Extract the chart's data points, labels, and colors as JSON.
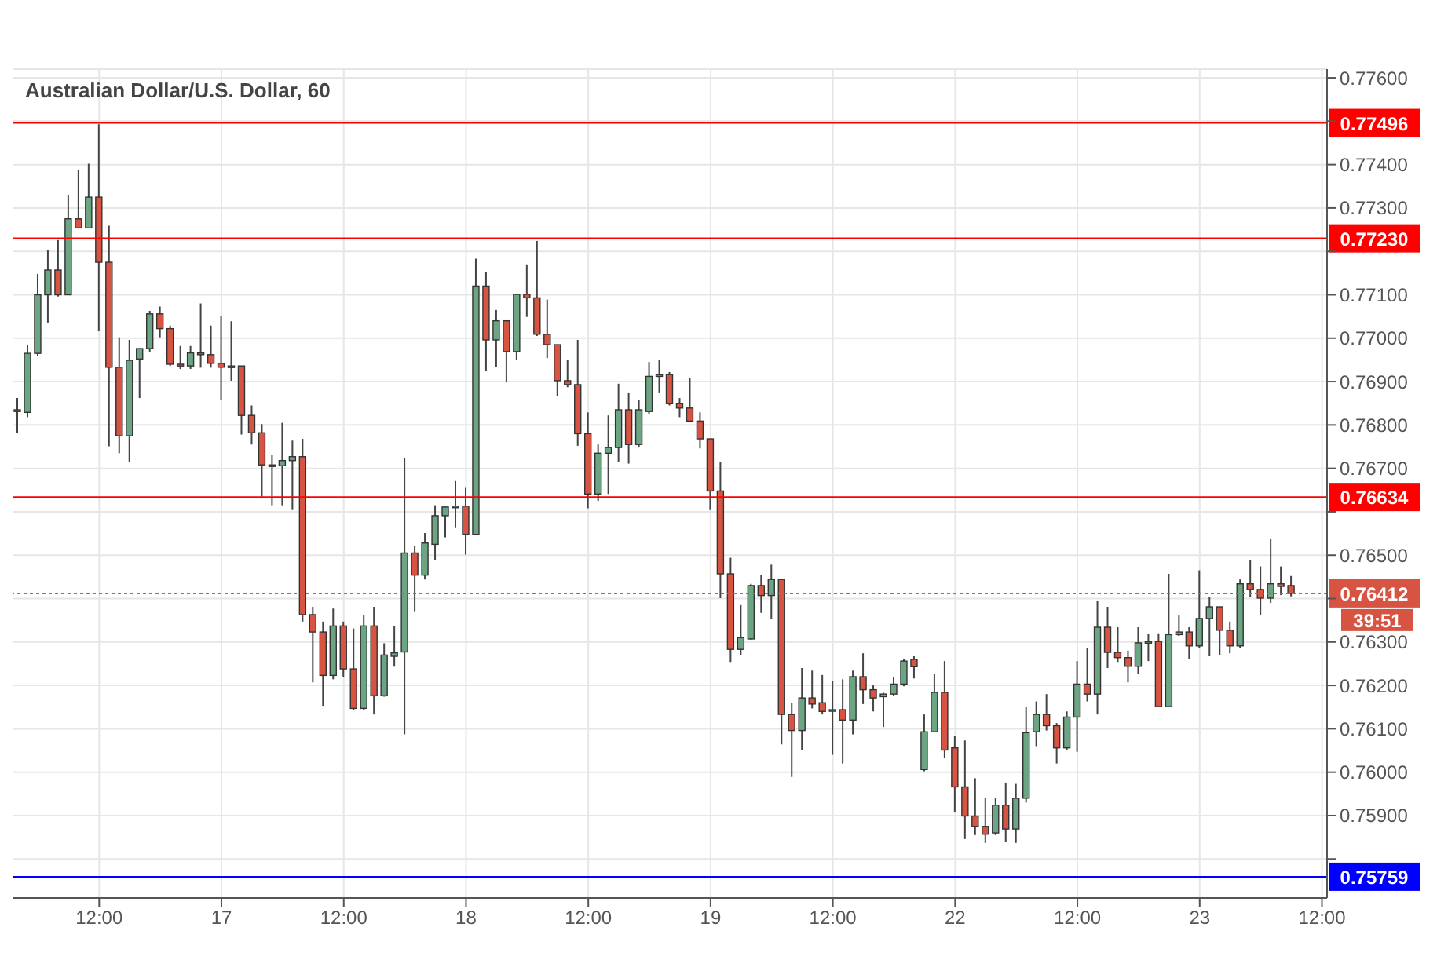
{
  "chart_data": {
    "type": "candlestick",
    "title": "Australian Dollar/U.S. Dollar, 60",
    "categories": [
      null,
      null,
      null,
      null,
      null,
      null,
      null,
      null,
      "12:00",
      null,
      null,
      null,
      null,
      null,
      null,
      null,
      null,
      null,
      null,
      null,
      "17",
      null,
      null,
      null,
      null,
      null,
      null,
      null,
      null,
      null,
      null,
      null,
      "12:00",
      null,
      null,
      null,
      null,
      null,
      null,
      null,
      null,
      null,
      null,
      null,
      "18",
      null,
      null,
      null,
      null,
      null,
      null,
      null,
      null,
      null,
      null,
      null,
      "12:00",
      null,
      null,
      null,
      null,
      null,
      null,
      null,
      null,
      null,
      null,
      null,
      "19",
      null,
      null,
      null,
      null,
      null,
      null,
      null,
      null,
      null,
      null,
      null,
      "12:00",
      null,
      null,
      null,
      null,
      null,
      null,
      null,
      null,
      null,
      null,
      null,
      "22",
      null,
      null,
      null,
      null,
      null,
      null,
      null,
      null,
      null,
      null,
      null,
      "12:00",
      null,
      null,
      null,
      null,
      null,
      null,
      null,
      null,
      null,
      null,
      null,
      "23",
      null,
      null,
      null,
      null,
      null,
      null,
      null,
      null,
      null,
      null,
      null,
      "12:00"
    ],
    "ohlc": [
      [
        0.76835,
        0.76862,
        0.76782,
        0.76831
      ],
      [
        0.76829,
        0.76985,
        0.76818,
        0.76965
      ],
      [
        0.76965,
        0.77148,
        0.76958,
        0.771
      ],
      [
        0.771,
        0.77203,
        0.77036,
        0.77157
      ],
      [
        0.77157,
        0.77226,
        0.77096,
        0.771
      ],
      [
        0.771,
        0.7733,
        0.771,
        0.77275
      ],
      [
        0.77275,
        0.77387,
        0.77254,
        0.77254
      ],
      [
        0.77254,
        0.77402,
        0.77254,
        0.77325
      ],
      [
        0.77325,
        0.77493,
        0.77016,
        0.77175
      ],
      [
        0.77175,
        0.77259,
        0.76751,
        0.76933
      ],
      [
        0.76933,
        0.77002,
        0.76735,
        0.76775
      ],
      [
        0.76775,
        0.76996,
        0.76715,
        0.76949
      ],
      [
        0.76952,
        0.76976,
        0.76862,
        0.76976
      ],
      [
        0.76976,
        0.77063,
        0.76969,
        0.77056
      ],
      [
        0.77056,
        0.77073,
        0.77002,
        0.77022
      ],
      [
        0.77022,
        0.77029,
        0.76936,
        0.7694
      ],
      [
        0.7694,
        0.76982,
        0.76929,
        0.76936
      ],
      [
        0.76936,
        0.76982,
        0.76929,
        0.76966
      ],
      [
        0.76966,
        0.7708,
        0.76932,
        0.76962
      ],
      [
        0.76962,
        0.77029,
        0.76932,
        0.76942
      ],
      [
        0.76942,
        0.77052,
        0.76858,
        0.76933
      ],
      [
        0.76933,
        0.77039,
        0.76902,
        0.76936
      ],
      [
        0.76936,
        0.76936,
        0.76778,
        0.76822
      ],
      [
        0.76822,
        0.76845,
        0.76755,
        0.76782
      ],
      [
        0.76782,
        0.76802,
        0.76635,
        0.76708
      ],
      [
        0.76708,
        0.76732,
        0.76615,
        0.76705
      ],
      [
        0.76706,
        0.76805,
        0.76615,
        0.76718
      ],
      [
        0.76718,
        0.76764,
        0.76604,
        0.76727
      ],
      [
        0.76727,
        0.76768,
        0.76347,
        0.76363
      ],
      [
        0.76363,
        0.76381,
        0.76207,
        0.76323
      ],
      [
        0.76323,
        0.76347,
        0.76153,
        0.76223
      ],
      [
        0.76223,
        0.76377,
        0.76214,
        0.76337
      ],
      [
        0.76337,
        0.76347,
        0.7622,
        0.76238
      ],
      [
        0.76238,
        0.76331,
        0.76144,
        0.76147
      ],
      [
        0.76147,
        0.76361,
        0.76144,
        0.76337
      ],
      [
        0.76337,
        0.76381,
        0.76133,
        0.76176
      ],
      [
        0.76176,
        0.76297,
        0.76174,
        0.7627
      ],
      [
        0.76267,
        0.76337,
        0.76243,
        0.76275
      ],
      [
        0.76277,
        0.76724,
        0.76087,
        0.76505
      ],
      [
        0.76505,
        0.76521,
        0.76371,
        0.76454
      ],
      [
        0.76454,
        0.76551,
        0.76444,
        0.76528
      ],
      [
        0.76525,
        0.76615,
        0.76488,
        0.76591
      ],
      [
        0.76591,
        0.76611,
        0.76541,
        0.76611
      ],
      [
        0.76611,
        0.76671,
        0.76564,
        0.76613
      ],
      [
        0.76613,
        0.76655,
        0.76501,
        0.76548
      ],
      [
        0.76548,
        0.77183,
        0.76548,
        0.7712
      ],
      [
        0.7712,
        0.77152,
        0.76925,
        0.76996
      ],
      [
        0.76996,
        0.77065,
        0.76933,
        0.7704
      ],
      [
        0.7704,
        0.7704,
        0.76898,
        0.76969
      ],
      [
        0.76969,
        0.77101,
        0.76949,
        0.77101
      ],
      [
        0.77101,
        0.7717,
        0.77049,
        0.77093
      ],
      [
        0.77093,
        0.77224,
        0.77005,
        0.77009
      ],
      [
        0.77009,
        0.77089,
        0.76954,
        0.76985
      ],
      [
        0.76985,
        0.76985,
        0.76866,
        0.76902
      ],
      [
        0.76902,
        0.76949,
        0.76887,
        0.76893
      ],
      [
        0.76893,
        0.76996,
        0.76752,
        0.7678
      ],
      [
        0.7678,
        0.76829,
        0.76608,
        0.76641
      ],
      [
        0.76641,
        0.76755,
        0.76625,
        0.76735
      ],
      [
        0.76735,
        0.76822,
        0.76641,
        0.76748
      ],
      [
        0.76748,
        0.76895,
        0.76715,
        0.76835
      ],
      [
        0.76835,
        0.76875,
        0.76711,
        0.76755
      ],
      [
        0.76755,
        0.76858,
        0.76748,
        0.76835
      ],
      [
        0.76831,
        0.76945,
        0.76826,
        0.76912
      ],
      [
        0.76912,
        0.76949,
        0.76875,
        0.76916
      ],
      [
        0.76916,
        0.76922,
        0.76845,
        0.76849
      ],
      [
        0.76849,
        0.76862,
        0.76818,
        0.76839
      ],
      [
        0.76839,
        0.76909,
        0.76806,
        0.76809
      ],
      [
        0.76809,
        0.76829,
        0.76746,
        0.76768
      ],
      [
        0.76768,
        0.76768,
        0.76604,
        0.76648
      ],
      [
        0.76648,
        0.76715,
        0.76401,
        0.76457
      ],
      [
        0.76457,
        0.76494,
        0.76254,
        0.76283
      ],
      [
        0.76283,
        0.76385,
        0.7627,
        0.7631
      ],
      [
        0.76307,
        0.76434,
        0.76305,
        0.7643
      ],
      [
        0.7643,
        0.76454,
        0.76367,
        0.76407
      ],
      [
        0.76407,
        0.76478,
        0.76353,
        0.76444
      ],
      [
        0.76444,
        0.76444,
        0.76064,
        0.76133
      ],
      [
        0.76133,
        0.7616,
        0.75989,
        0.76096
      ],
      [
        0.76096,
        0.7624,
        0.76051,
        0.76171
      ],
      [
        0.76171,
        0.76234,
        0.76147,
        0.76157
      ],
      [
        0.7616,
        0.76224,
        0.76133,
        0.7614
      ],
      [
        0.76141,
        0.76211,
        0.7604,
        0.76144
      ],
      [
        0.76144,
        0.76214,
        0.7602,
        0.7612
      ],
      [
        0.7612,
        0.76234,
        0.76087,
        0.7622
      ],
      [
        0.7622,
        0.76274,
        0.76157,
        0.7619
      ],
      [
        0.7619,
        0.762,
        0.7614,
        0.76171
      ],
      [
        0.76174,
        0.76183,
        0.76104,
        0.7618
      ],
      [
        0.7618,
        0.7622,
        0.76176,
        0.76203
      ],
      [
        0.76203,
        0.7626,
        0.76198,
        0.76256
      ],
      [
        0.7626,
        0.76267,
        0.76216,
        0.76243
      ],
      [
        0.76006,
        0.76133,
        0.76002,
        0.76093
      ],
      [
        0.76093,
        0.76227,
        0.76093,
        0.76184
      ],
      [
        0.76184,
        0.76256,
        0.76033,
        0.76051
      ],
      [
        0.76056,
        0.76083,
        0.75909,
        0.75966
      ],
      [
        0.75966,
        0.76073,
        0.75846,
        0.75899
      ],
      [
        0.75899,
        0.75986,
        0.75855,
        0.75875
      ],
      [
        0.75875,
        0.7594,
        0.75837,
        0.75857
      ],
      [
        0.7586,
        0.7594,
        0.75855,
        0.75924
      ],
      [
        0.75924,
        0.75976,
        0.75839,
        0.75869
      ],
      [
        0.75869,
        0.75973,
        0.75837,
        0.7594
      ],
      [
        0.7594,
        0.7615,
        0.7593,
        0.76091
      ],
      [
        0.76093,
        0.76163,
        0.7606,
        0.76133
      ],
      [
        0.76133,
        0.7618,
        0.76096,
        0.76107
      ],
      [
        0.76107,
        0.76113,
        0.7602,
        0.76056
      ],
      [
        0.76056,
        0.7614,
        0.76051,
        0.76127
      ],
      [
        0.76127,
        0.76256,
        0.76047,
        0.76203
      ],
      [
        0.76203,
        0.76287,
        0.76163,
        0.7618
      ],
      [
        0.7618,
        0.76394,
        0.76133,
        0.76334
      ],
      [
        0.76334,
        0.76381,
        0.7624,
        0.76276
      ],
      [
        0.76276,
        0.76334,
        0.76254,
        0.76264
      ],
      [
        0.76264,
        0.7628,
        0.76207,
        0.76244
      ],
      [
        0.76244,
        0.76334,
        0.76227,
        0.76298
      ],
      [
        0.76298,
        0.76318,
        0.76256,
        0.76301
      ],
      [
        0.76301,
        0.7632,
        0.76151,
        0.76151
      ],
      [
        0.76151,
        0.76457,
        0.76151,
        0.76317
      ],
      [
        0.76317,
        0.76361,
        0.76314,
        0.76323
      ],
      [
        0.76323,
        0.76334,
        0.7626,
        0.76291
      ],
      [
        0.76291,
        0.76465,
        0.76287,
        0.76354
      ],
      [
        0.76354,
        0.76404,
        0.76267,
        0.76381
      ],
      [
        0.76381,
        0.76381,
        0.7627,
        0.76327
      ],
      [
        0.76327,
        0.76347,
        0.76274,
        0.76291
      ],
      [
        0.76291,
        0.76444,
        0.76287,
        0.76434
      ],
      [
        0.76434,
        0.76488,
        0.76404,
        0.76421
      ],
      [
        0.76421,
        0.76474,
        0.76363,
        0.76401
      ],
      [
        0.76401,
        0.76537,
        0.7639,
        0.76434
      ],
      [
        0.76434,
        0.76474,
        0.76408,
        0.76428
      ],
      [
        0.7643,
        0.76452,
        0.76405,
        0.76412
      ],
      null,
      null,
      null
    ],
    "colors": [
      "#d75442",
      "#6ba583",
      "#6ba583",
      "#6ba583",
      "#d75442",
      "#6ba583",
      "#d75442",
      "#6ba583",
      "#d75442",
      "#d75442",
      "#d75442",
      "#6ba583",
      "#6ba583",
      "#6ba583",
      "#d75442",
      "#d75442",
      "#d75442",
      "#6ba583",
      "#d75442",
      "#d75442",
      "#d75442",
      "#6ba583",
      "#d75442",
      "#d75442",
      "#d75442",
      "#d75442",
      "#6ba583",
      "#6ba583",
      "#d75442",
      "#d75442",
      "#d75442",
      "#6ba583",
      "#d75442",
      "#d75442",
      "#6ba583",
      "#d75442",
      "#6ba583",
      "#6ba583",
      "#6ba583",
      "#d75442",
      "#6ba583",
      "#6ba583",
      "#6ba583",
      "#6ba583",
      "#d75442",
      "#6ba583",
      "#d75442",
      "#6ba583",
      "#d75442",
      "#6ba583",
      "#d75442",
      "#d75442",
      "#d75442",
      "#d75442",
      "#d75442",
      "#d75442",
      "#d75442",
      "#6ba583",
      "#6ba583",
      "#6ba583",
      "#d75442",
      "#6ba583",
      "#6ba583",
      "#6ba583",
      "#d75442",
      "#d75442",
      "#d75442",
      "#d75442",
      "#d75442",
      "#d75442",
      "#d75442",
      "#6ba583",
      "#6ba583",
      "#d75442",
      "#6ba583",
      "#d75442",
      "#d75442",
      "#6ba583",
      "#d75442",
      "#d75442",
      "#6ba583",
      "#d75442",
      "#6ba583",
      "#d75442",
      "#d75442",
      "#6ba583",
      "#6ba583",
      "#6ba583",
      "#d75442",
      "#6ba583",
      "#6ba583",
      "#d75442",
      "#d75442",
      "#d75442",
      "#d75442",
      "#d75442",
      "#6ba583",
      "#d75442",
      "#6ba583",
      "#6ba583",
      "#6ba583",
      "#d75442",
      "#d75442",
      "#6ba583",
      "#6ba583",
      "#d75442",
      "#6ba583",
      "#d75442",
      "#d75442",
      "#d75442",
      "#6ba583",
      "#6ba583",
      "#d75442",
      "#6ba583",
      "#6ba583",
      "#d75442",
      "#6ba583",
      "#6ba583",
      "#d75442",
      "#d75442",
      "#6ba583",
      "#d75442",
      "#d75442",
      "#6ba583",
      "#d75442",
      "#d75442",
      null,
      null,
      null
    ],
    "ylim": [
      0.7571,
      0.7762
    ],
    "yticks": [
      {
        "value": 0.758,
        "label": null
      },
      {
        "value": 0.759,
        "label": "0.75900"
      },
      {
        "value": 0.76,
        "label": "0.76000"
      },
      {
        "value": 0.761,
        "label": "0.76100"
      },
      {
        "value": 0.762,
        "label": "0.76200"
      },
      {
        "value": 0.763,
        "label": "0.76300"
      },
      {
        "value": 0.764,
        "label": null
      },
      {
        "value": 0.765,
        "label": "0.76500"
      },
      {
        "value": 0.766,
        "label": null
      },
      {
        "value": 0.767,
        "label": "0.76700"
      },
      {
        "value": 0.768,
        "label": "0.76800"
      },
      {
        "value": 0.769,
        "label": "0.76900"
      },
      {
        "value": 0.77,
        "label": "0.77000"
      },
      {
        "value": 0.771,
        "label": "0.77100"
      },
      {
        "value": 0.772,
        "label": null
      },
      {
        "value": 0.773,
        "label": "0.77300"
      },
      {
        "value": 0.774,
        "label": "0.77400"
      },
      {
        "value": 0.775,
        "label": null
      },
      {
        "value": 0.776,
        "label": "0.77600"
      }
    ],
    "grid": true,
    "ref_lines": [
      {
        "axis": "y",
        "value": 0.77496,
        "label": "0.77496",
        "color": "#ff0000"
      },
      {
        "axis": "y",
        "value": 0.7723,
        "label": "0.77230",
        "color": "#ff0000"
      },
      {
        "axis": "y",
        "value": 0.76634,
        "label": "0.76634",
        "color": "#ff0000"
      },
      {
        "axis": "y",
        "value": 0.76412,
        "label": "0.76412",
        "color": "#d75442",
        "line_style": "dotted"
      },
      {
        "axis": "y",
        "value": 0.75759,
        "label": "0.75759",
        "color": "#0000ff"
      }
    ],
    "annotations": [
      "39:51"
    ]
  }
}
